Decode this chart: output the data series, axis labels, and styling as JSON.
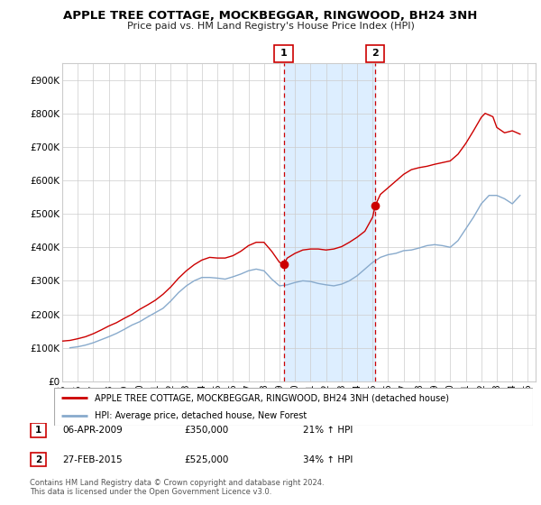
{
  "title": "APPLE TREE COTTAGE, MOCKBEGGAR, RINGWOOD, BH24 3NH",
  "subtitle": "Price paid vs. HM Land Registry's House Price Index (HPI)",
  "legend_line1": "APPLE TREE COTTAGE, MOCKBEGGAR, RINGWOOD, BH24 3NH (detached house)",
  "legend_line2": "HPI: Average price, detached house, New Forest",
  "footnote1": "Contains HM Land Registry data © Crown copyright and database right 2024.",
  "footnote2": "This data is licensed under the Open Government Licence v3.0.",
  "marker1_date": "06-APR-2009",
  "marker1_price": "£350,000",
  "marker1_hpi": "21% ↑ HPI",
  "marker2_date": "27-FEB-2015",
  "marker2_price": "£525,000",
  "marker2_hpi": "34% ↑ HPI",
  "red_color": "#cc0000",
  "blue_color": "#88aacc",
  "shade_color": "#ddeeff",
  "grid_color": "#cccccc",
  "background_color": "#ffffff",
  "ylim": [
    0,
    950000
  ],
  "yticks": [
    0,
    100000,
    200000,
    300000,
    400000,
    500000,
    600000,
    700000,
    800000,
    900000
  ],
  "ytick_labels": [
    "£0",
    "£100K",
    "£200K",
    "£300K",
    "£400K",
    "£500K",
    "£600K",
    "£700K",
    "£800K",
    "£900K"
  ],
  "xlim_start": 1995.0,
  "xlim_end": 2025.5,
  "marker1_x": 2009.27,
  "marker1_y": 350000,
  "marker2_x": 2015.17,
  "marker2_y": 525000,
  "years_hpi": [
    1995.5,
    1996.0,
    1996.5,
    1997.0,
    1997.5,
    1998.0,
    1998.5,
    1999.0,
    1999.5,
    2000.0,
    2000.5,
    2001.0,
    2001.5,
    2002.0,
    2002.5,
    2003.0,
    2003.5,
    2004.0,
    2004.5,
    2005.0,
    2005.5,
    2006.0,
    2006.5,
    2007.0,
    2007.5,
    2008.0,
    2008.5,
    2009.0,
    2009.5,
    2010.0,
    2010.5,
    2011.0,
    2011.5,
    2012.0,
    2012.5,
    2013.0,
    2013.5,
    2014.0,
    2014.5,
    2015.0,
    2015.5,
    2016.0,
    2016.5,
    2017.0,
    2017.5,
    2018.0,
    2018.5,
    2019.0,
    2019.5,
    2020.0,
    2020.5,
    2021.0,
    2021.5,
    2022.0,
    2022.5,
    2023.0,
    2023.5,
    2024.0,
    2024.5
  ],
  "vals_hpi": [
    100000,
    103000,
    108000,
    115000,
    124000,
    133000,
    143000,
    155000,
    168000,
    178000,
    192000,
    205000,
    218000,
    240000,
    265000,
    285000,
    300000,
    310000,
    310000,
    308000,
    305000,
    312000,
    320000,
    330000,
    335000,
    330000,
    305000,
    285000,
    288000,
    295000,
    300000,
    298000,
    292000,
    288000,
    285000,
    290000,
    300000,
    315000,
    335000,
    355000,
    370000,
    378000,
    382000,
    390000,
    392000,
    398000,
    405000,
    408000,
    405000,
    400000,
    420000,
    455000,
    490000,
    530000,
    555000,
    555000,
    545000,
    530000,
    555000
  ],
  "years_red": [
    1995.0,
    1995.5,
    1996.0,
    1996.5,
    1997.0,
    1997.5,
    1998.0,
    1998.5,
    1999.0,
    1999.5,
    2000.0,
    2000.5,
    2001.0,
    2001.5,
    2002.0,
    2002.5,
    2003.0,
    2003.5,
    2004.0,
    2004.5,
    2005.0,
    2005.5,
    2006.0,
    2006.5,
    2007.0,
    2007.5,
    2008.0,
    2008.5,
    2009.0,
    2009.27,
    2009.5,
    2010.0,
    2010.5,
    2011.0,
    2011.5,
    2012.0,
    2012.5,
    2013.0,
    2013.5,
    2014.0,
    2014.5,
    2015.0,
    2015.17,
    2015.5,
    2016.0,
    2016.5,
    2017.0,
    2017.5,
    2018.0,
    2018.5,
    2019.0,
    2019.5,
    2020.0,
    2020.5,
    2021.0,
    2021.5,
    2022.0,
    2022.25,
    2022.75,
    2023.0,
    2023.5,
    2024.0,
    2024.5
  ],
  "vals_red": [
    120000,
    122000,
    127000,
    133000,
    142000,
    153000,
    165000,
    175000,
    188000,
    200000,
    215000,
    228000,
    242000,
    260000,
    282000,
    308000,
    330000,
    348000,
    362000,
    370000,
    368000,
    368000,
    375000,
    388000,
    405000,
    415000,
    415000,
    388000,
    355000,
    350000,
    368000,
    382000,
    392000,
    395000,
    395000,
    392000,
    395000,
    402000,
    415000,
    430000,
    448000,
    490000,
    525000,
    558000,
    578000,
    598000,
    618000,
    632000,
    638000,
    642000,
    648000,
    653000,
    658000,
    678000,
    710000,
    748000,
    788000,
    800000,
    790000,
    758000,
    742000,
    748000,
    738000
  ]
}
